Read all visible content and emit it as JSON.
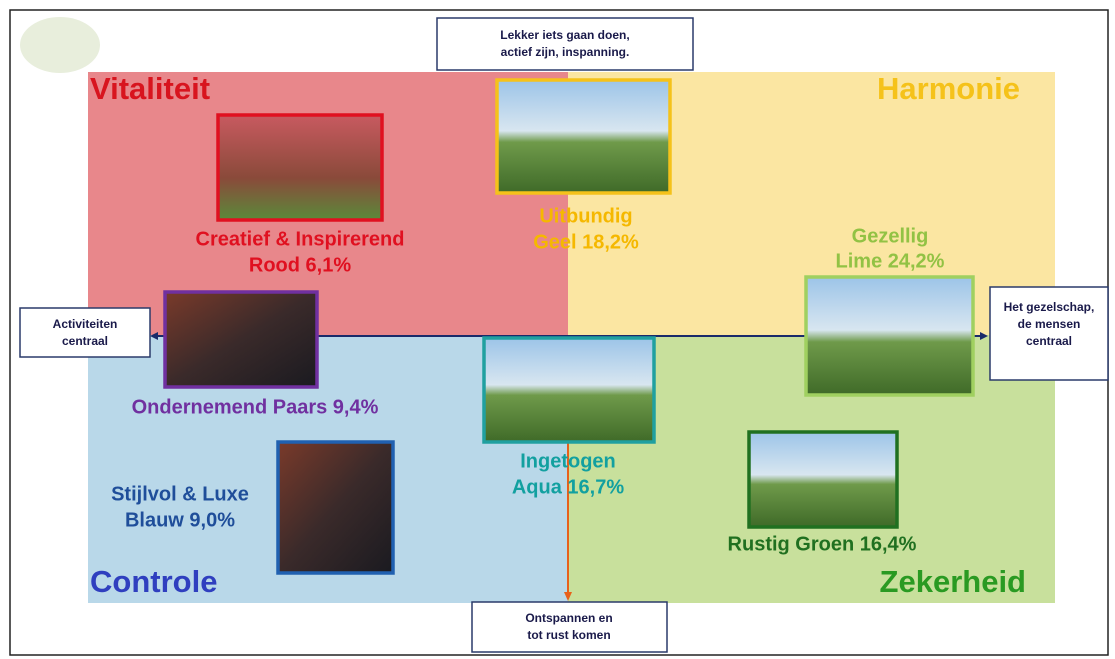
{
  "quadrants": [
    {
      "title": "Vitaliteit"
    },
    {
      "title": "Harmonie"
    },
    {
      "title": "Controle"
    },
    {
      "title": "Zekerheid"
    }
  ],
  "segments": [
    {
      "lines": [
        "Creatief & Inspirerend",
        "Rood 6,1%"
      ]
    },
    {
      "lines": [
        "Uitbundig",
        "Geel 18,2%"
      ]
    },
    {
      "lines": [
        "Gezellig",
        "Lime 24,2%"
      ]
    },
    {
      "lines": [
        "Ondernemend Paars 9,4%"
      ]
    },
    {
      "lines": [
        "Ingetogen",
        "Aqua 16,7%"
      ]
    },
    {
      "lines": [
        "Stijlvol & Luxe",
        "Blauw 9,0%"
      ]
    },
    {
      "lines": [
        "Rustig Groen 16,4%"
      ]
    }
  ],
  "axes": {
    "top": {
      "lines": [
        "Lekker iets gaan doen,",
        "actief zijn, inspanning."
      ]
    },
    "left": {
      "lines": [
        "Activiteiten",
        "centraal"
      ]
    },
    "right": {
      "lines": [
        "Het gezelschap,",
        "de mensen",
        "centraal"
      ]
    },
    "bottom": {
      "lines": [
        "Ontspannen en",
        "tot rust komen"
      ]
    }
  }
}
